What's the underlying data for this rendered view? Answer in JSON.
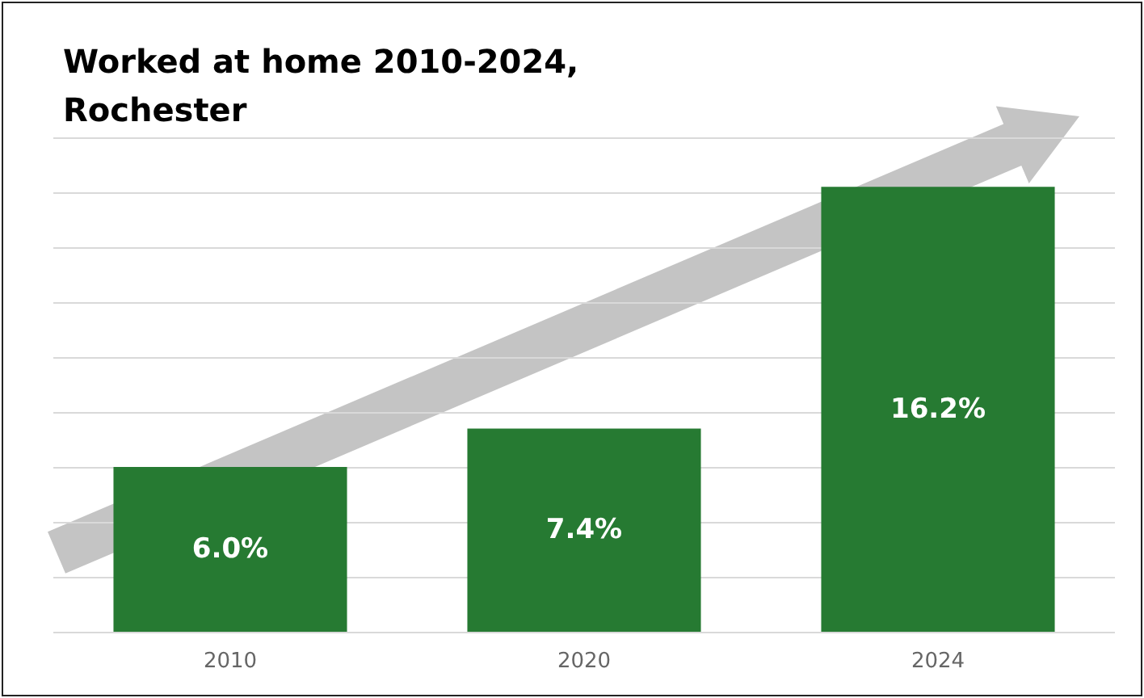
{
  "chart_data": {
    "type": "bar",
    "title": "Worked at home 2010-2024,\nRochester",
    "categories": [
      "2010",
      "2020",
      "2024"
    ],
    "values": [
      6.0,
      7.4,
      16.2
    ],
    "color": "#267a32",
    "value_labels": [
      "6.0%",
      "7.4%",
      "16.2%"
    ],
    "ylim": [
      0,
      18
    ],
    "yticks": [
      {
        "value": 0,
        "label": null
      },
      {
        "value": 2,
        "label": null
      },
      {
        "value": 4,
        "label": null
      },
      {
        "value": 6,
        "label": null
      },
      {
        "value": 8,
        "label": null
      },
      {
        "value": 10,
        "label": null
      },
      {
        "value": 12,
        "label": null
      },
      {
        "value": 14,
        "label": null
      },
      {
        "value": 16,
        "label": null
      },
      {
        "value": 18,
        "label": null
      }
    ],
    "grid": "y",
    "tick_labels": "x"
  }
}
